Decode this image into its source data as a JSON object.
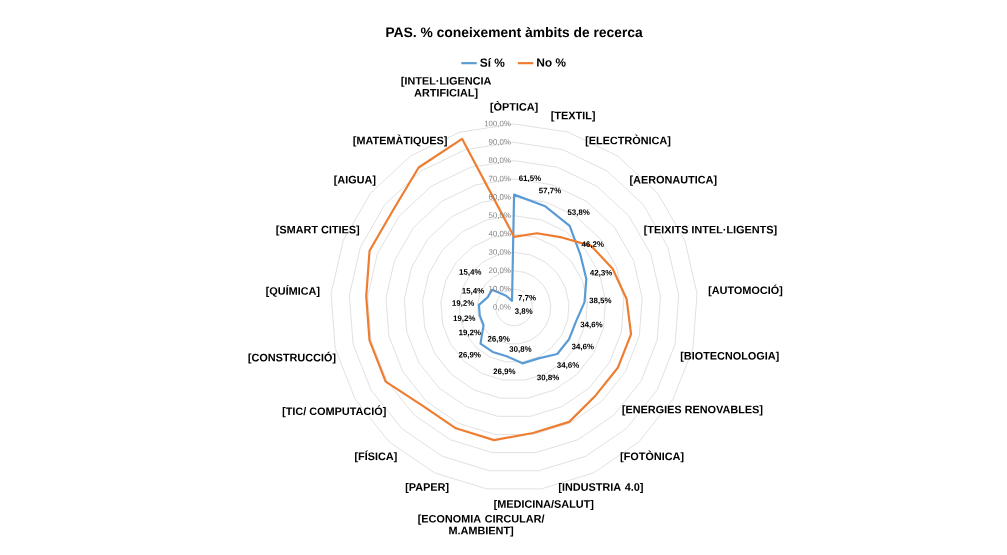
{
  "chart_data": {
    "type": "radar",
    "title": "PAS. % coneixement àmbits de recerca",
    "categories": [
      "[ÒPTICA]",
      "[TEXTIL]",
      "[ELECTRÒNICA]",
      "[AERONAUTICA]",
      "[TEIXITS INTEL·LIGENTS]",
      "[AUTOMOCIÓ]",
      "[BIOTECNOLOGIA]",
      "[ENERGIES RENOVABLES]",
      "[FOTÒNICA]",
      "[INDUSTRIA 4.0]",
      "[MEDICINA/SALUT]",
      "[ECONOMIA CIRCULAR/ M.AMBIENT]",
      "[PAPER]",
      "[FÍSICA]",
      "[TIC/ COMPUTACIÓ]",
      "[CONSTRUCCIÓ]",
      "[QUÍMICA]",
      "[SMART CITIES]",
      "[AIGUA]",
      "[MATEMÀTIQUES]",
      "[INTEL·LIGENCIA ARTIFICIAL]"
    ],
    "series": [
      {
        "name": "Sí %",
        "color": "#5b9bd5",
        "values": [
          61.5,
          57.7,
          53.8,
          46.2,
          42.3,
          38.5,
          34.6,
          34.6,
          34.6,
          30.8,
          30.8,
          26.9,
          26.9,
          26.9,
          19.2,
          19.2,
          19.2,
          15.4,
          15.4,
          7.7,
          3.8
        ],
        "value_labels": [
          "61,5%",
          "57,7%",
          "53,8%",
          "46,2%",
          "42,3%",
          "38,5%",
          "34,6%",
          "34,6%",
          "34,6%",
          "30,8%",
          "30,8%",
          "26,9%",
          "26,9%",
          "26,9%",
          "19,2%",
          "19,2%",
          "19,2%",
          "15,4%",
          "15,4%",
          "7,7%",
          "3,8%"
        ]
      },
      {
        "name": "No %",
        "color": "#ed7d31",
        "values": [
          38.5,
          42.3,
          46.2,
          53.8,
          57.7,
          61.5,
          65.4,
          65.4,
          65.4,
          69.2,
          69.2,
          73.1,
          73.1,
          73.1,
          80.8,
          80.8,
          80.8,
          84.6,
          84.6,
          92.3,
          96.2
        ]
      }
    ],
    "ylim": [
      0,
      100
    ],
    "yticks": [
      {
        "value": 0,
        "label": "0,0%"
      },
      {
        "value": 10,
        "label": "10,0%"
      },
      {
        "value": 20,
        "label": "20,0%"
      },
      {
        "value": 30,
        "label": "30,0%"
      },
      {
        "value": 40,
        "label": "40,0%"
      },
      {
        "value": 50,
        "label": "50,0%"
      },
      {
        "value": 60,
        "label": "60,0%"
      },
      {
        "value": 70,
        "label": "70,0%"
      },
      {
        "value": 80,
        "label": "80,0%"
      },
      {
        "value": 90,
        "label": "90,0%"
      },
      {
        "value": 100,
        "label": "100,0%"
      }
    ],
    "grid": true,
    "legend": "top",
    "marker": "none"
  }
}
